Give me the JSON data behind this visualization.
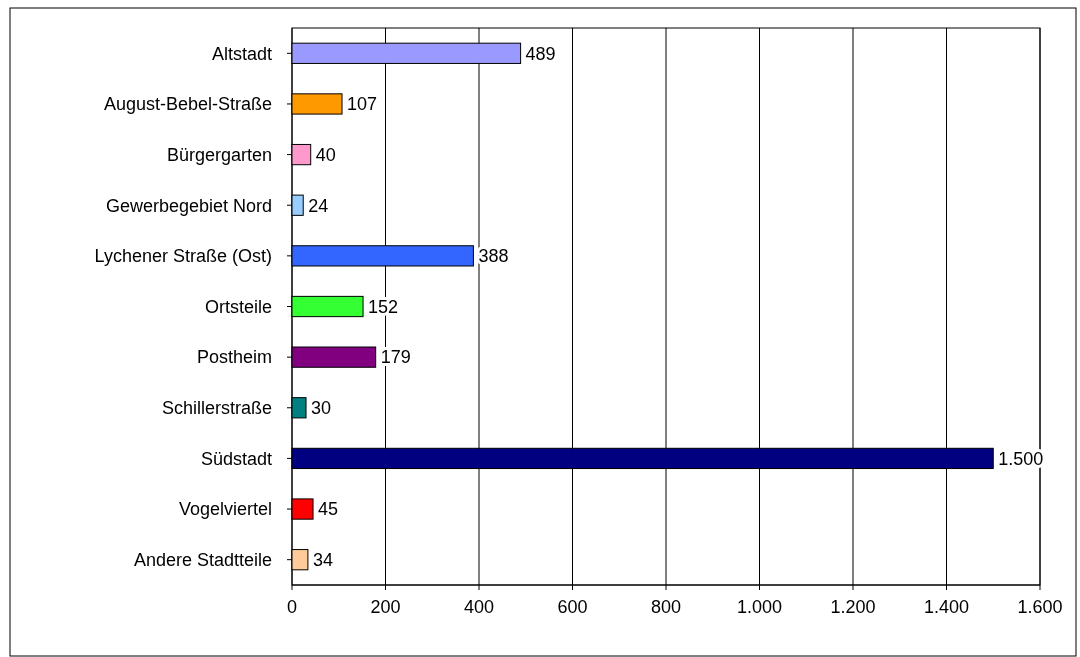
{
  "chart_data": {
    "type": "bar",
    "orientation": "horizontal",
    "categories": [
      "Altstadt",
      "August-Bebel-Straße",
      "Bürgergarten",
      "Gewerbegebiet Nord",
      "Lychener Straße (Ost)",
      "Ortsteile",
      "Postheim",
      "Schillerstraße",
      "Südstadt",
      "Vogelviertel",
      "Andere Stadtteile"
    ],
    "values": [
      489,
      107,
      40,
      24,
      388,
      152,
      179,
      30,
      1500,
      45,
      34
    ],
    "colors": [
      "#9999ff",
      "#ff9900",
      "#ff99cc",
      "#99ccff",
      "#3366ff",
      "#33ff33",
      "#800080",
      "#008080",
      "#000080",
      "#ff0000",
      "#ffcc99"
    ],
    "value_labels": [
      "489",
      "107",
      "40",
      "24",
      "388",
      "152",
      "179",
      "30",
      "1.500",
      "45",
      "34"
    ],
    "xlim": [
      0,
      1600
    ],
    "xticks": [
      0,
      200,
      400,
      600,
      800,
      {
        "value": 1000,
        "label": "1.000"
      },
      {
        "value": 1200,
        "label": "1.200"
      },
      {
        "value": 1400,
        "label": "1.400"
      },
      {
        "value": 1600,
        "label": "1.600"
      }
    ],
    "grid": "x"
  }
}
